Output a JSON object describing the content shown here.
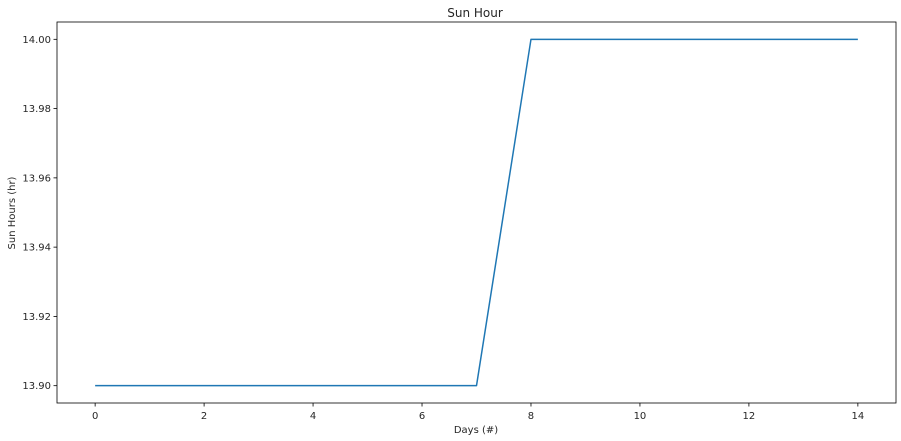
{
  "chart_data": {
    "type": "line",
    "title": "Sun Hour",
    "xlabel": "Days (#)",
    "ylabel": "Sun Hours (hr)",
    "x": [
      0,
      1,
      2,
      3,
      4,
      5,
      6,
      7,
      8,
      9,
      10,
      11,
      12,
      13,
      14
    ],
    "series": [
      {
        "color": "#1f77b4",
        "values": [
          13.9,
          13.9,
          13.9,
          13.9,
          13.9,
          13.9,
          13.9,
          13.9,
          14.0,
          14.0,
          14.0,
          14.0,
          14.0,
          14.0,
          14.0
        ]
      }
    ],
    "xlim": [
      -0.7,
      14.7
    ],
    "ylim": [
      13.895,
      14.005
    ],
    "xticks": [
      0,
      2,
      4,
      6,
      8,
      10,
      12,
      14
    ],
    "yticks": [
      13.9,
      13.92,
      13.94,
      13.96,
      13.98,
      14.0
    ],
    "xtick_labels": [
      "0",
      "2",
      "4",
      "6",
      "8",
      "10",
      "12",
      "14"
    ],
    "ytick_labels": [
      "13.90",
      "13.92",
      "13.94",
      "13.96",
      "13.98",
      "14.00"
    ],
    "grid": false,
    "legend": "none"
  }
}
